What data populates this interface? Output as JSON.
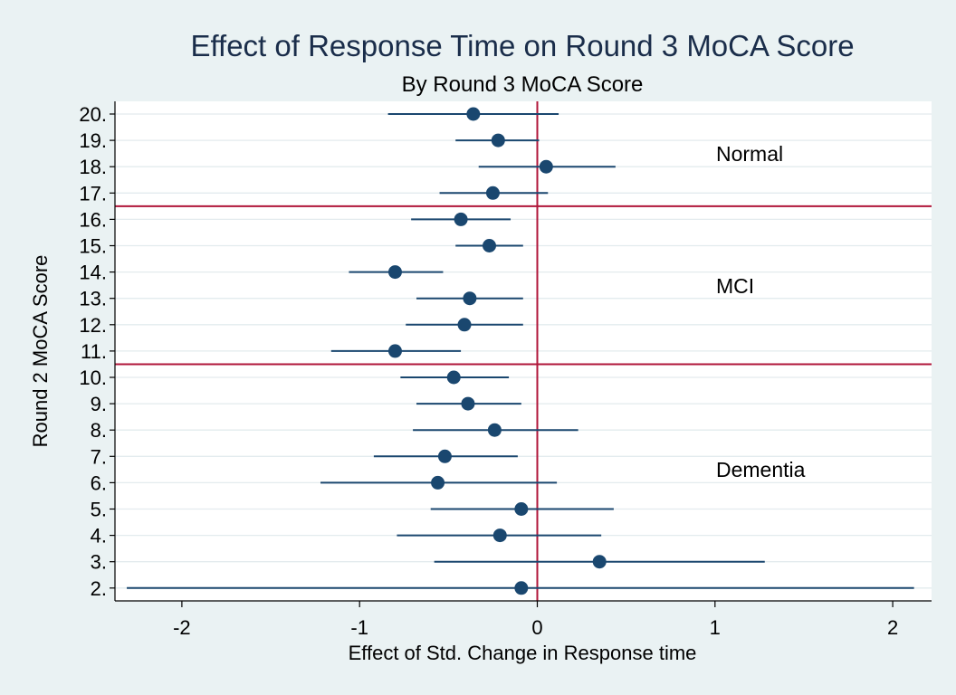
{
  "chart_data": {
    "type": "scatter",
    "subtype": "coefficient-plot",
    "title": "Effect of Response Time on Round 3 MoCA Score",
    "subtitle": "By Round 3 MoCA Score",
    "xlabel": "Effect of Std. Change in Response time",
    "ylabel": "Round 2 MoCA Score",
    "xlim": [
      -2.4,
      2.15
    ],
    "xticks": [
      -2,
      -1,
      0,
      1,
      2
    ],
    "grid": true,
    "categories": [
      "20.",
      "19.",
      "18.",
      "17.",
      "16.",
      "15.",
      "14.",
      "13.",
      "12.",
      "11.",
      "10.",
      "9.",
      "8.",
      "7.",
      "6.",
      "5.",
      "4.",
      "3.",
      "2."
    ],
    "values": [
      -0.36,
      -0.22,
      0.05,
      -0.25,
      -0.43,
      -0.27,
      -0.8,
      -0.38,
      -0.41,
      -0.8,
      -0.47,
      -0.39,
      -0.24,
      -0.52,
      -0.56,
      -0.09,
      -0.21,
      0.35,
      -0.09
    ],
    "ci_low": [
      -0.84,
      -0.46,
      -0.33,
      -0.55,
      -0.71,
      -0.46,
      -1.06,
      -0.68,
      -0.74,
      -1.16,
      -0.77,
      -0.68,
      -0.7,
      -0.92,
      -1.22,
      -0.6,
      -0.79,
      -0.58,
      -2.31
    ],
    "ci_high": [
      0.12,
      0.01,
      0.44,
      0.06,
      -0.15,
      -0.08,
      -0.53,
      -0.08,
      -0.08,
      -0.43,
      -0.16,
      -0.09,
      0.23,
      -0.11,
      0.11,
      0.43,
      0.36,
      1.28,
      2.12
    ],
    "reference_lines": {
      "x0": 0,
      "y_separators": [
        "16.5",
        "10.5"
      ]
    },
    "annotations": [
      "Normal",
      "MCI",
      "Dementia"
    ],
    "colors": {
      "background": "#eaf2f3",
      "plot_bg": "#ffffff",
      "grid": "#e3ebee",
      "marker": "#1a476f",
      "reference": "#b0163a",
      "title": "#1a2d4a"
    }
  }
}
